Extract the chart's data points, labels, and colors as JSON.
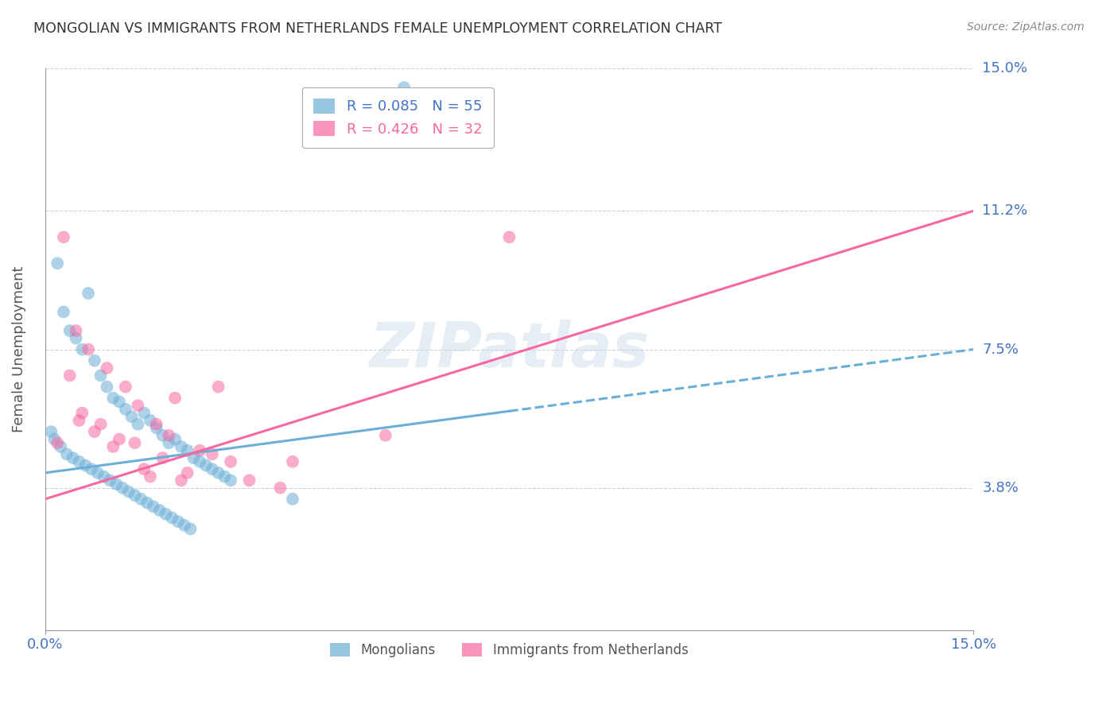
{
  "title": "MONGOLIAN VS IMMIGRANTS FROM NETHERLANDS FEMALE UNEMPLOYMENT CORRELATION CHART",
  "source": "Source: ZipAtlas.com",
  "ylabel": "Female Unemployment",
  "x_min": 0.0,
  "x_max": 15.0,
  "y_min": 0.0,
  "y_max": 15.0,
  "y_tick_vals": [
    0.0,
    3.8,
    7.5,
    11.2,
    15.0
  ],
  "y_tick_labels": [
    "",
    "3.8%",
    "7.5%",
    "11.2%",
    "15.0%"
  ],
  "color_mongolian": "#6baed6",
  "color_netherlands": "#f768a1",
  "legend_label1": "Mongolians",
  "legend_label2": "Immigrants from Netherlands",
  "watermark": "ZIPatlas",
  "background_color": "#ffffff",
  "grid_color": "#cccccc",
  "title_color": "#333333",
  "axis_label_color": "#555555",
  "tick_color": "#4472c4",
  "right_label_color": "#4472c4",
  "trend_mong_x0": 0.0,
  "trend_mong_y0": 4.2,
  "trend_mong_x1": 15.0,
  "trend_mong_y1": 7.5,
  "trend_mong_solid_end_x": 7.5,
  "trend_neth_x0": 0.0,
  "trend_neth_y0": 3.5,
  "trend_neth_x1": 15.0,
  "trend_neth_y1": 11.2,
  "mongolian_x": [
    5.8,
    0.2,
    0.3,
    0.4,
    0.5,
    0.6,
    0.7,
    0.8,
    0.9,
    1.0,
    1.1,
    1.2,
    1.3,
    1.4,
    1.5,
    1.6,
    1.7,
    1.8,
    1.9,
    2.0,
    2.1,
    2.2,
    2.3,
    2.4,
    2.5,
    2.6,
    2.7,
    2.8,
    2.9,
    3.0,
    0.1,
    0.15,
    0.25,
    0.35,
    0.45,
    0.55,
    0.65,
    0.75,
    0.85,
    0.95,
    1.05,
    1.15,
    1.25,
    1.35,
    1.45,
    1.55,
    1.65,
    1.75,
    1.85,
    1.95,
    2.05,
    2.15,
    2.25,
    2.35,
    4.0
  ],
  "mongolian_y": [
    14.5,
    9.8,
    8.5,
    8.0,
    7.8,
    7.5,
    9.0,
    7.2,
    6.8,
    6.5,
    6.2,
    6.1,
    5.9,
    5.7,
    5.5,
    5.8,
    5.6,
    5.4,
    5.2,
    5.0,
    5.1,
    4.9,
    4.8,
    4.6,
    4.5,
    4.4,
    4.3,
    4.2,
    4.1,
    4.0,
    5.3,
    5.1,
    4.9,
    4.7,
    4.6,
    4.5,
    4.4,
    4.3,
    4.2,
    4.1,
    4.0,
    3.9,
    3.8,
    3.7,
    3.6,
    3.5,
    3.4,
    3.3,
    3.2,
    3.1,
    3.0,
    2.9,
    2.8,
    2.7,
    3.5
  ],
  "netherlands_x": [
    0.3,
    0.5,
    0.7,
    1.0,
    1.3,
    1.5,
    1.8,
    2.0,
    2.5,
    3.0,
    0.4,
    0.6,
    0.8,
    1.1,
    1.6,
    2.2,
    0.2,
    0.9,
    1.2,
    1.9,
    2.3,
    3.8,
    7.5,
    5.5,
    4.0,
    3.3,
    2.7,
    1.7,
    2.8,
    2.1,
    0.55,
    1.45
  ],
  "netherlands_y": [
    10.5,
    8.0,
    7.5,
    7.0,
    6.5,
    6.0,
    5.5,
    5.2,
    4.8,
    4.5,
    6.8,
    5.8,
    5.3,
    4.9,
    4.3,
    4.0,
    5.0,
    5.5,
    5.1,
    4.6,
    4.2,
    3.8,
    10.5,
    5.2,
    4.5,
    4.0,
    4.7,
    4.1,
    6.5,
    6.2,
    5.6,
    5.0
  ]
}
